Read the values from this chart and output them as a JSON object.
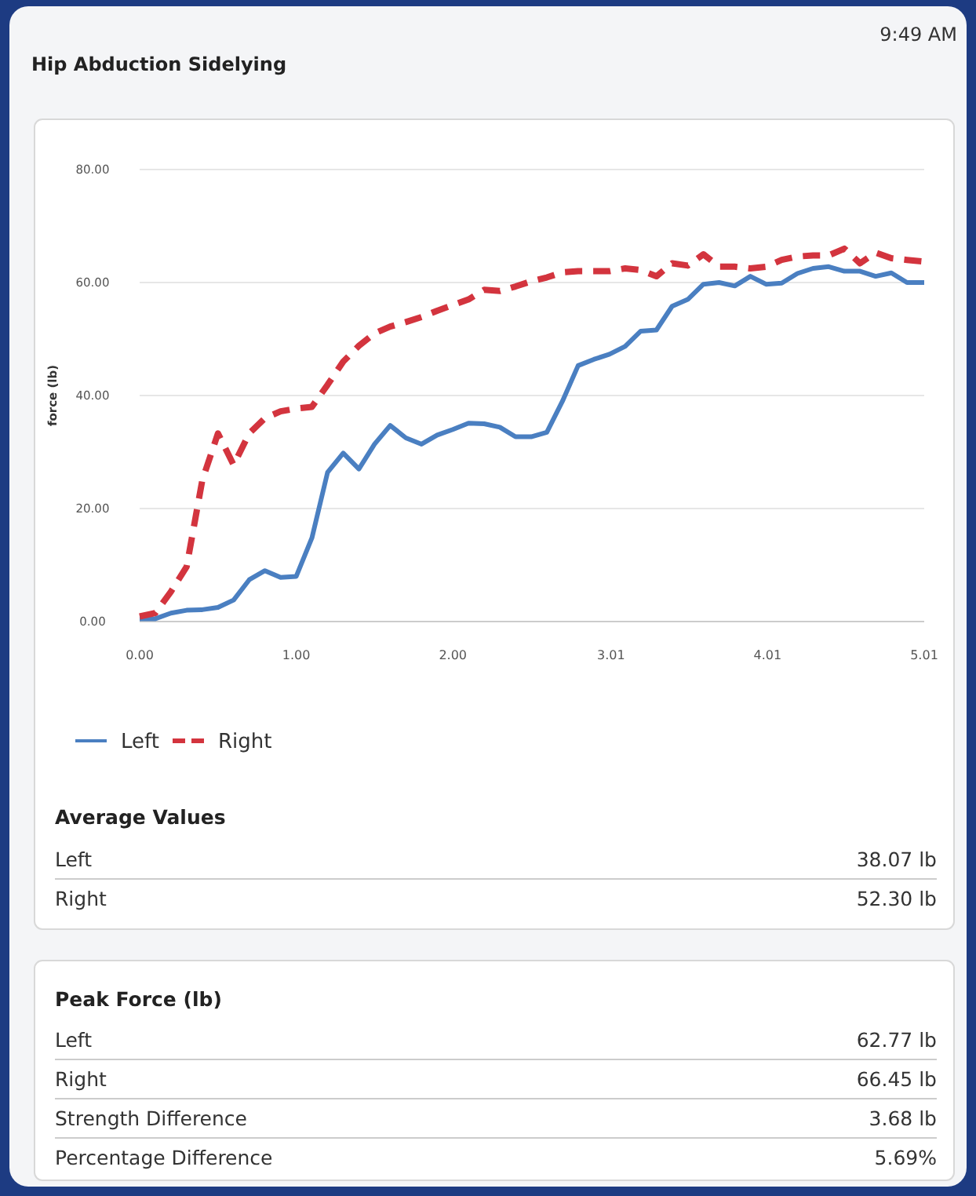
{
  "chart_data": {
    "type": "line",
    "title": "Hip Abduction Sidelying",
    "ylabel": "force (lb)",
    "x": [
      0,
      0.1,
      0.2,
      0.3,
      0.4,
      0.5,
      0.6,
      0.7,
      0.8,
      0.9,
      1.0,
      1.1,
      1.2,
      1.3,
      1.4,
      1.5,
      1.6,
      1.7,
      1.8,
      1.9,
      2.0,
      2.1,
      2.2,
      2.3,
      2.4,
      2.5,
      2.6,
      2.7,
      2.8,
      2.9,
      3.0,
      3.1,
      3.2,
      3.3,
      3.4,
      3.5,
      3.6,
      3.7,
      3.8,
      3.9,
      4.0,
      4.1,
      4.2,
      4.3,
      4.4,
      4.5,
      4.6,
      4.7,
      4.8,
      4.9,
      5.01
    ],
    "series": [
      {
        "name": "Left",
        "color": "#4a7fc1",
        "line_style": "solid",
        "values": [
          0.5,
          0.5,
          1.5,
          2,
          2.1,
          2.5,
          3.8,
          7.4,
          9,
          7.8,
          8,
          14.8,
          26.4,
          29.8,
          27,
          31.4,
          34.7,
          32.5,
          31.4,
          33,
          34,
          35.1,
          35,
          34.4,
          32.7,
          32.7,
          33.5,
          39,
          45.3,
          46.4,
          47.3,
          48.7,
          51.4,
          51.6,
          55.8,
          57,
          59.7,
          60,
          59.4,
          61.1,
          59.7,
          59.9,
          61.6,
          62.5,
          62.8,
          62,
          62,
          61.1,
          61.7,
          60,
          60
        ]
      },
      {
        "name": "Right",
        "color": "#d3343e",
        "line_style": "dashed",
        "values": [
          0.9,
          1.5,
          5.3,
          9.7,
          25,
          33.3,
          27.7,
          33.3,
          36,
          37.2,
          37.7,
          38,
          41.9,
          46,
          48.8,
          51,
          52.2,
          53,
          53.9,
          55,
          56,
          57,
          58.7,
          58.5,
          59.3,
          60.2,
          60.9,
          61.8,
          62,
          62,
          62,
          62.5,
          62.2,
          61.1,
          63.4,
          63,
          65,
          62.8,
          62.8,
          62.5,
          62.8,
          64,
          64.6,
          64.8,
          64.8,
          66,
          63.4,
          65.3,
          64.3,
          64,
          63.7
        ]
      }
    ],
    "xlim": [
      0,
      5.01
    ],
    "xticks": [
      {
        "value": 0,
        "label": "0.00"
      },
      {
        "value": 1,
        "label": "1.00"
      },
      {
        "value": 2,
        "label": "2.00"
      },
      {
        "value": 3.01,
        "label": "3.01"
      },
      {
        "value": 4.01,
        "label": "4.01"
      },
      {
        "value": 5.01,
        "label": "5.01"
      }
    ],
    "ylim": [
      0,
      80
    ],
    "yticks": [
      {
        "value": 0,
        "label": "0.00"
      },
      {
        "value": 20,
        "label": "20.00"
      },
      {
        "value": 40,
        "label": "40.00"
      },
      {
        "value": 60,
        "label": "60.00"
      },
      {
        "value": 80,
        "label": "80.00"
      }
    ],
    "grid": "y",
    "legend": "bottom",
    "marker": "none",
    "annotations": [
      "9:49 AM",
      "Average Values",
      "Left",
      "38.07 lb",
      "Right",
      "52.30 lb",
      "Peak Force (lb)",
      "Left",
      "62.77 lb",
      "Right",
      "66.45 lb",
      "Strength Difference",
      "3.68 lb",
      "Percentage Difference",
      "5.69%"
    ]
  }
}
